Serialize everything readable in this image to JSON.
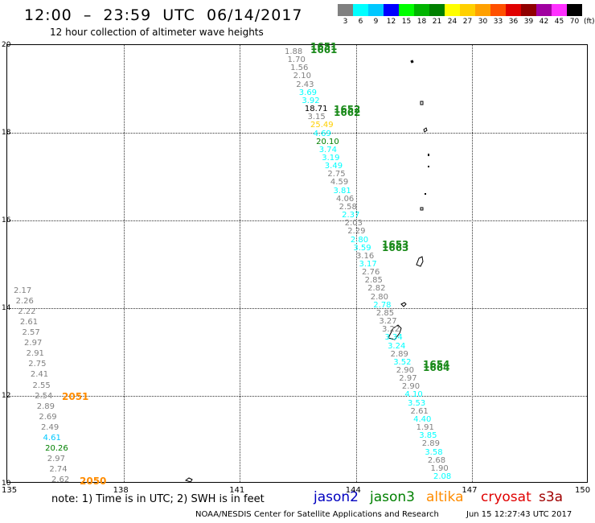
{
  "header": {
    "title": "12:00  –  23:59  UTC  06/14/2017",
    "subtitle": "12 hour collection of altimeter wave heights"
  },
  "legend": {
    "unit": "(ft)",
    "bins": [
      {
        "label": "3",
        "color": "#808080"
      },
      {
        "label": "6",
        "color": "#00ffff"
      },
      {
        "label": "9",
        "color": "#00c8ff"
      },
      {
        "label": "12",
        "color": "#0000ff"
      },
      {
        "label": "15",
        "color": "#00ff00"
      },
      {
        "label": "18",
        "color": "#00b400"
      },
      {
        "label": "21",
        "color": "#008000"
      },
      {
        "label": "24",
        "color": "#ffff00"
      },
      {
        "label": "27",
        "color": "#ffd000"
      },
      {
        "label": "30",
        "color": "#ffa000"
      },
      {
        "label": "33",
        "color": "#ff5000"
      },
      {
        "label": "36",
        "color": "#e00000"
      },
      {
        "label": "39",
        "color": "#900000"
      },
      {
        "label": "42",
        "color": "#a000a0"
      },
      {
        "label": "45",
        "color": "#ff30ff"
      },
      {
        "label": "70",
        "color": "#000000"
      }
    ]
  },
  "axes": {
    "y_labels": [
      "20",
      "18",
      "16",
      "14",
      "12",
      "10"
    ],
    "x_labels": [
      "135",
      "138",
      "141",
      "144",
      "147",
      "150"
    ]
  },
  "pass_labels": [
    {
      "text": "1651",
      "color": "#1a8a1a",
      "overlay": "1661"
    },
    {
      "text": "1652",
      "color": "#1a8a1a",
      "overlay": "1662"
    },
    {
      "text": "1653",
      "color": "#1a8a1a",
      "overlay": "1663"
    },
    {
      "text": "1654",
      "color": "#1a8a1a",
      "overlay": "1664"
    },
    {
      "text": "2051",
      "color": "#ff8c00"
    },
    {
      "text": "2050",
      "color": "#ff8c00"
    }
  ],
  "track_readings": [
    {
      "v": "1.88",
      "c": "#808080"
    },
    {
      "v": "1.70",
      "c": "#808080"
    },
    {
      "v": "1.56",
      "c": "#808080"
    },
    {
      "v": "2.10",
      "c": "#808080"
    },
    {
      "v": "2.43",
      "c": "#808080"
    },
    {
      "v": "3.69",
      "c": "#00ffff"
    },
    {
      "v": "3.92",
      "c": "#00ffff"
    },
    {
      "v": "18.71",
      "c": "#000000"
    },
    {
      "v": "3.15",
      "c": "#808080"
    },
    {
      "v": "25.49",
      "c": "#ffd000"
    },
    {
      "v": "4.69",
      "c": "#00ffff"
    },
    {
      "v": "20.10",
      "c": "#008000"
    },
    {
      "v": "3.74",
      "c": "#00ffff"
    },
    {
      "v": "3.19",
      "c": "#00ffff"
    },
    {
      "v": "3.49",
      "c": "#00ffff"
    },
    {
      "v": "2.75",
      "c": "#808080"
    },
    {
      "v": "4.59",
      "c": "#808080"
    },
    {
      "v": "3.81",
      "c": "#00ffff"
    },
    {
      "v": "4.06",
      "c": "#808080"
    },
    {
      "v": "2.58",
      "c": "#808080"
    },
    {
      "v": "2.37",
      "c": "#00ffff"
    },
    {
      "v": "2.03",
      "c": "#808080"
    },
    {
      "v": "2.29",
      "c": "#808080"
    },
    {
      "v": "2.80",
      "c": "#00ffff"
    },
    {
      "v": "3.59",
      "c": "#00ffff"
    },
    {
      "v": "3.16",
      "c": "#808080"
    },
    {
      "v": "3.17",
      "c": "#00ffff"
    },
    {
      "v": "2.76",
      "c": "#808080"
    },
    {
      "v": "2.85",
      "c": "#808080"
    },
    {
      "v": "2.82",
      "c": "#808080"
    },
    {
      "v": "2.80",
      "c": "#808080"
    },
    {
      "v": "2.78",
      "c": "#00ffff"
    },
    {
      "v": "2.85",
      "c": "#808080"
    },
    {
      "v": "3.27",
      "c": "#808080"
    },
    {
      "v": "3.22",
      "c": "#808080"
    },
    {
      "v": "3.34",
      "c": "#00ffff"
    },
    {
      "v": "3.24",
      "c": "#00ffff"
    },
    {
      "v": "2.89",
      "c": "#808080"
    },
    {
      "v": "3.52",
      "c": "#00ffff"
    },
    {
      "v": "2.90",
      "c": "#808080"
    },
    {
      "v": "2.97",
      "c": "#808080"
    },
    {
      "v": "2.90",
      "c": "#808080"
    },
    {
      "v": "4.10",
      "c": "#00ffff"
    },
    {
      "v": "3.53",
      "c": "#00ffff"
    },
    {
      "v": "2.61",
      "c": "#808080"
    },
    {
      "v": "4.40",
      "c": "#00ffff"
    },
    {
      "v": "1.91",
      "c": "#808080"
    },
    {
      "v": "3.85",
      "c": "#00ffff"
    },
    {
      "v": "2.89",
      "c": "#808080"
    },
    {
      "v": "3.58",
      "c": "#00ffff"
    },
    {
      "v": "2.68",
      "c": "#808080"
    },
    {
      "v": "1.90",
      "c": "#808080"
    },
    {
      "v": "2.08",
      "c": "#00ffff"
    }
  ],
  "left_readings": [
    {
      "v": "2.17",
      "c": "#808080"
    },
    {
      "v": "2.26",
      "c": "#808080"
    },
    {
      "v": "2.22",
      "c": "#808080"
    },
    {
      "v": "2.61",
      "c": "#808080"
    },
    {
      "v": "2.57",
      "c": "#808080"
    },
    {
      "v": "2.97",
      "c": "#808080"
    },
    {
      "v": "2.91",
      "c": "#808080"
    },
    {
      "v": "2.75",
      "c": "#808080"
    },
    {
      "v": "2.41",
      "c": "#808080"
    },
    {
      "v": "2.55",
      "c": "#808080"
    },
    {
      "v": "2.54",
      "c": "#808080"
    },
    {
      "v": "2.89",
      "c": "#808080"
    },
    {
      "v": "2.69",
      "c": "#808080"
    },
    {
      "v": "2.49",
      "c": "#808080"
    },
    {
      "v": "4.61",
      "c": "#00c8ff"
    },
    {
      "v": "20.26",
      "c": "#008000"
    },
    {
      "v": "2.97",
      "c": "#808080"
    },
    {
      "v": "2.74",
      "c": "#808080"
    },
    {
      "v": "2.62",
      "c": "#808080"
    }
  ],
  "footer": {
    "note": "note:  1) Time is in UTC;  2) SWH is in feet",
    "satellites": [
      {
        "name": "jason2",
        "color": "#0000c0"
      },
      {
        "name": "jason3",
        "color": "#008000"
      },
      {
        "name": "altika",
        "color": "#ff8c00"
      },
      {
        "name": "cryosat",
        "color": "#e00000"
      },
      {
        "name": "s3a",
        "color": "#a00000"
      }
    ],
    "credit": "NOAA/NESDIS Center for Satellite Applications and Research",
    "timestamp": "Jun 15 12:27:43 UTC 2017"
  }
}
